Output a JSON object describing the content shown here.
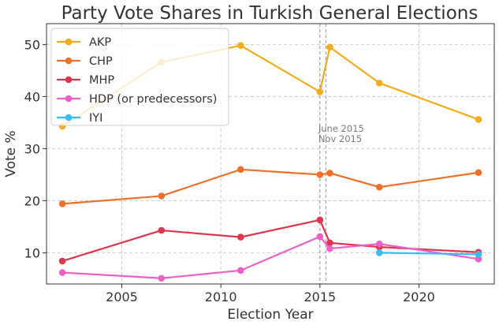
{
  "chart_data": {
    "type": "line",
    "title": "Party Vote Shares in Turkish General Elections",
    "xlabel": "Election Year",
    "ylabel": "Vote %",
    "xlim": [
      2001.2,
      2023.8
    ],
    "ylim": [
      4,
      54
    ],
    "xticks": [
      2005,
      2010,
      2015,
      2020
    ],
    "yticks": [
      10,
      20,
      30,
      40,
      50
    ],
    "grid": true,
    "legend_position": "top-left",
    "vertical_markers": [
      {
        "x": 2015.0,
        "label": "June 2015"
      },
      {
        "x": 2015.3,
        "label": "Nov 2015"
      }
    ],
    "series": [
      {
        "name": "AKP",
        "color": "#f5ac1b",
        "x": [
          2002,
          2007,
          2011,
          2015.0,
          2015.5,
          2018,
          2023
        ],
        "values": [
          34.3,
          46.6,
          49.8,
          40.9,
          49.5,
          42.6,
          35.6
        ]
      },
      {
        "name": "CHP",
        "color": "#ef7029",
        "x": [
          2002,
          2007,
          2011,
          2015.0,
          2015.5,
          2018,
          2023
        ],
        "values": [
          19.4,
          20.9,
          26.0,
          25.0,
          25.3,
          22.6,
          25.4
        ]
      },
      {
        "name": "MHP",
        "color": "#e0354f",
        "x": [
          2002,
          2007,
          2011,
          2015.0,
          2015.5,
          2018,
          2023
        ],
        "values": [
          8.4,
          14.3,
          13.0,
          16.3,
          11.9,
          11.1,
          10.1
        ]
      },
      {
        "name": "HDP (or predecessors)",
        "color": "#ee5fc7",
        "x": [
          2002,
          2007,
          2011,
          2015.0,
          2015.5,
          2018,
          2023
        ],
        "values": [
          6.2,
          5.1,
          6.6,
          13.1,
          10.8,
          11.7,
          8.8
        ]
      },
      {
        "name": "IYI",
        "color": "#37bdf6",
        "x": [
          2018,
          2023
        ],
        "values": [
          10.0,
          9.7
        ]
      }
    ]
  }
}
